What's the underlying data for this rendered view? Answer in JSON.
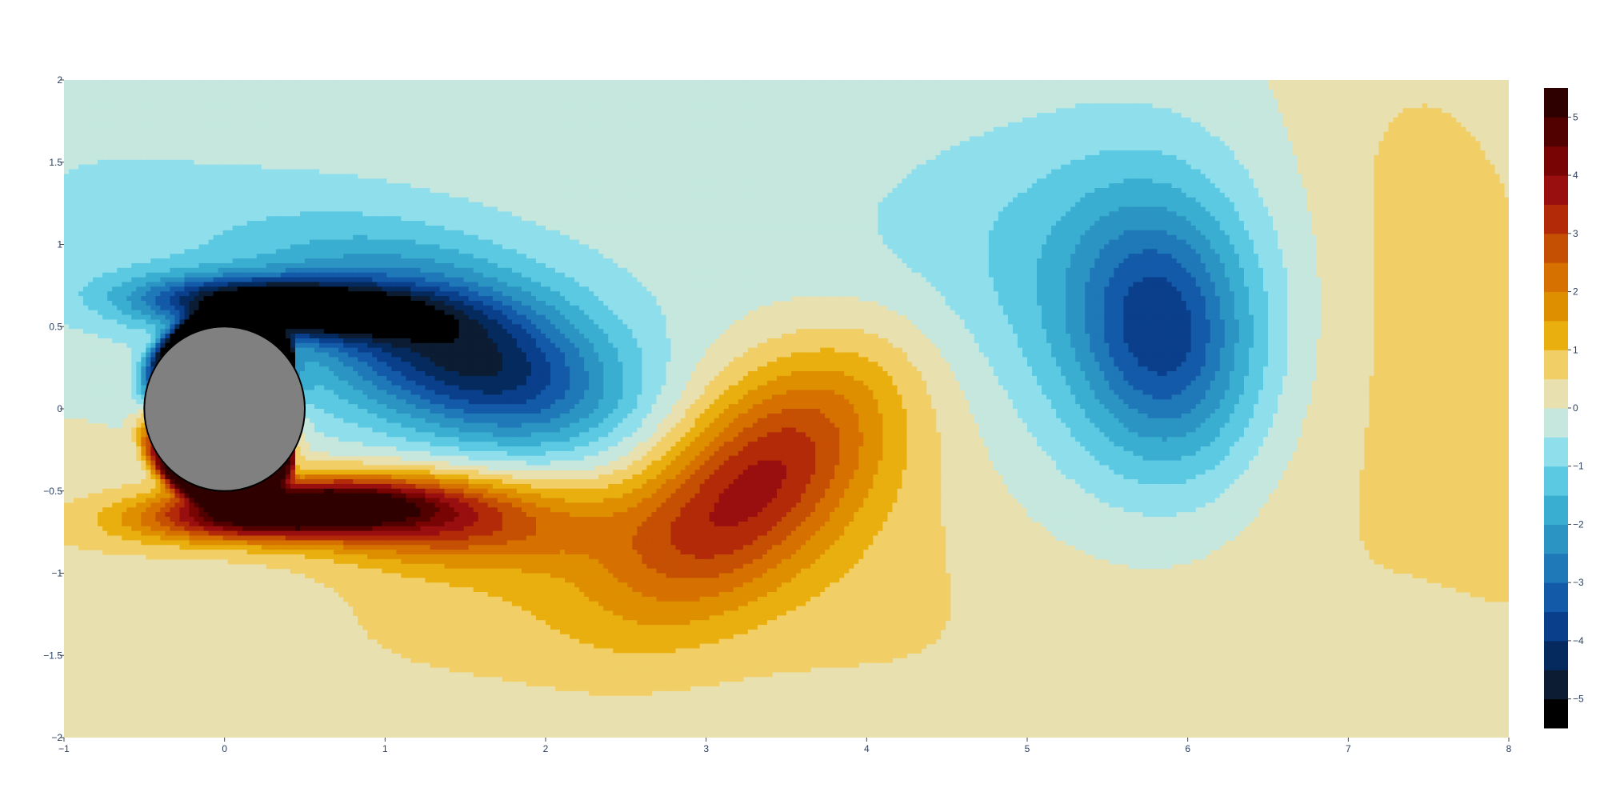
{
  "chart_data": {
    "type": "contour",
    "title": "",
    "xlabel": "",
    "ylabel": "",
    "xlim": [
      -1,
      8
    ],
    "ylim": [
      -2,
      2
    ],
    "x_ticks": [
      -1,
      0,
      1,
      2,
      3,
      4,
      5,
      6,
      7,
      8
    ],
    "x_tick_labels": [
      "−1",
      "0",
      "1",
      "2",
      "3",
      "4",
      "5",
      "6",
      "7",
      "8"
    ],
    "y_ticks": [
      -2,
      -1.5,
      -1,
      -0.5,
      0,
      0.5,
      1,
      1.5,
      2
    ],
    "y_tick_labels": [
      "−2",
      "−1.5",
      "−1",
      "−0.5",
      "0",
      "0.5",
      "1",
      "1.5",
      "2"
    ],
    "grid": false,
    "colorscale_name": "Balance",
    "contour_levels": [
      -5.5,
      -5,
      -4.5,
      -4,
      -3.5,
      -3,
      -2.5,
      -2,
      -1.5,
      -1,
      -0.5,
      0,
      0.5,
      1,
      1.5,
      2,
      2.5,
      3,
      3.5,
      4,
      4.5,
      5,
      5.5
    ],
    "band_colors": [
      "#000000",
      "#0b1c33",
      "#052b5e",
      "#0a3f8c",
      "#135aa9",
      "#1f78b8",
      "#2b94c3",
      "#3aaed1",
      "#5bc9e1",
      "#8fdeec",
      "#c5e7dd",
      "#e8e0ae",
      "#f1cf66",
      "#e8af0e",
      "#de8f00",
      "#d67100",
      "#c54f02",
      "#b32a08",
      "#990e0e",
      "#780404",
      "#520101",
      "#2f0000"
    ],
    "colorbar": {
      "range": [
        -5.5,
        5.5
      ],
      "ticks": [
        5,
        4,
        3,
        2,
        1,
        0,
        -1,
        -2,
        -3,
        -4,
        -5
      ],
      "tick_labels": [
        "5",
        "4",
        "3",
        "2",
        "1",
        "0",
        "−1",
        "−2",
        "−3",
        "−4",
        "−5"
      ]
    },
    "obstacle": {
      "shape": "circle",
      "center": [
        0,
        0
      ],
      "radius": 0.5,
      "color": "#808080"
    },
    "features": [
      {
        "kind": "vortex",
        "sign": "negative",
        "x": 1.9,
        "y": 0.2,
        "min": -3
      },
      {
        "kind": "vortex",
        "sign": "positive",
        "x": 3.7,
        "y": -0.5,
        "max": 2
      },
      {
        "kind": "vortex",
        "sign": "negative",
        "x": 5.85,
        "y": 0.5,
        "min": -2.5
      },
      {
        "kind": "shear-layer",
        "sign": "negative",
        "x_range": [
          -0.6,
          1.2
        ],
        "y": 0.6,
        "min": -5.5
      },
      {
        "kind": "shear-layer",
        "sign": "positive",
        "x_range": [
          -0.6,
          1.5
        ],
        "y": -0.6,
        "max": 5
      }
    ]
  }
}
